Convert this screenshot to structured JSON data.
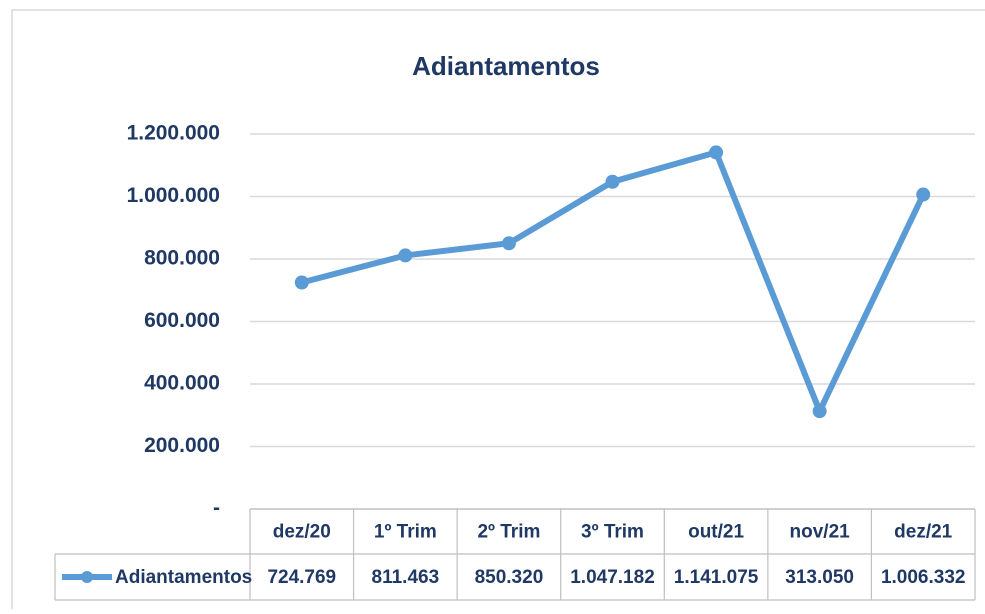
{
  "chart_data": {
    "type": "line",
    "title": "Adiantamentos",
    "categories": [
      "dez/20",
      "1º Trim",
      "2º Trim",
      "3º Trim",
      "out/21",
      "nov/21",
      "dez/21"
    ],
    "series": [
      {
        "name": "Adiantamentos",
        "color": "#5b9bd5",
        "values": [
          724769,
          811463,
          850320,
          1047182,
          1141075,
          313050,
          1006332
        ],
        "value_labels": [
          "724.769",
          "811.463",
          "850.320",
          "1.047.182",
          "1.141.075",
          "313.050",
          "1.006.332"
        ]
      }
    ],
    "ylim": [
      0,
      1200000
    ],
    "yticks": [
      {
        "value": 0,
        "label": "-"
      },
      {
        "value": 200000,
        "label": "200.000"
      },
      {
        "value": 400000,
        "label": "400.000"
      },
      {
        "value": 600000,
        "label": "600.000"
      },
      {
        "value": 800000,
        "label": "800.000"
      },
      {
        "value": 1000000,
        "label": "1.000.000"
      },
      {
        "value": 1200000,
        "label": "1.200.000"
      }
    ],
    "grid": true
  }
}
